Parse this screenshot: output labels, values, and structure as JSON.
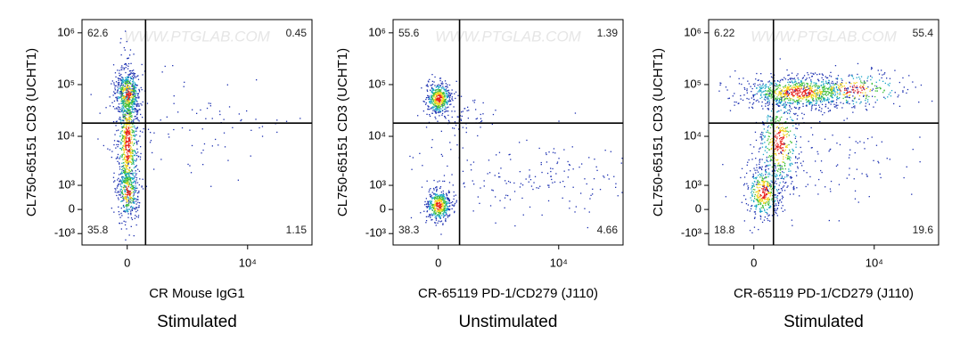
{
  "chart_data": [
    {
      "type": "density",
      "x_label": "CR Mouse IgG1",
      "y_label": "CL750-65151 CD3 (UCHT1)",
      "condition": "Stimulated",
      "watermark": "WWW.PTGLAB.COM",
      "quadrant_values": [
        62.6,
        0.45,
        35.8,
        1.15
      ],
      "quadrant_gate": {
        "x": 400,
        "y": 18000
      },
      "xlim": [
        -1200,
        57000
      ],
      "xticks": [
        0,
        {
          "value": 10000,
          "label": "10⁴"
        }
      ],
      "ylim": [
        -1800,
        1800000
      ],
      "yticks": [
        {
          "value": -1000,
          "label": "-10³"
        },
        0,
        {
          "value": 1000,
          "label": "10³"
        },
        {
          "value": 10000,
          "label": "10⁴"
        },
        {
          "value": 100000,
          "label": "10⁵"
        },
        {
          "value": 1000000,
          "label": "10⁶"
        }
      ]
    },
    {
      "type": "density",
      "x_label": "CR-65119 PD-1/CD279 (J110)",
      "y_label": "CL750-65151 CD3 (UCHT1)",
      "condition": "Unstimulated",
      "watermark": "WWW.PTGLAB.COM",
      "quadrant_values": [
        55.6,
        1.39,
        38.3,
        4.66
      ],
      "quadrant_gate": {
        "x": 470,
        "y": 18000
      },
      "xlim": [
        -1200,
        57000
      ],
      "xticks": [
        0,
        {
          "value": 10000,
          "label": "10⁴"
        }
      ],
      "ylim": [
        -1800,
        1800000
      ],
      "yticks": [
        {
          "value": -1000,
          "label": "-10³"
        },
        0,
        {
          "value": 1000,
          "label": "10³"
        },
        {
          "value": 10000,
          "label": "10⁴"
        },
        {
          "value": 100000,
          "label": "10⁵"
        },
        {
          "value": 1000000,
          "label": "10⁶"
        }
      ]
    },
    {
      "type": "density",
      "x_label": "CR-65119 PD-1/CD279 (J110)",
      "y_label": "CL750-65151 CD3 (UCHT1)",
      "condition": "Stimulated",
      "watermark": "WWW.PTGLAB.COM",
      "quadrant_values": [
        6.22,
        55.4,
        18.8,
        19.6
      ],
      "quadrant_gate": {
        "x": 430,
        "y": 18000
      },
      "xlim": [
        -1200,
        57000
      ],
      "xticks": [
        0,
        {
          "value": 10000,
          "label": "10⁴"
        }
      ],
      "ylim": [
        -1800,
        1800000
      ],
      "yticks": [
        {
          "value": -1000,
          "label": "-10³"
        },
        0,
        {
          "value": 1000,
          "label": "10³"
        },
        {
          "value": 10000,
          "label": "10⁴"
        },
        {
          "value": 100000,
          "label": "10⁵"
        },
        {
          "value": 1000000,
          "label": "10⁶"
        }
      ]
    }
  ]
}
